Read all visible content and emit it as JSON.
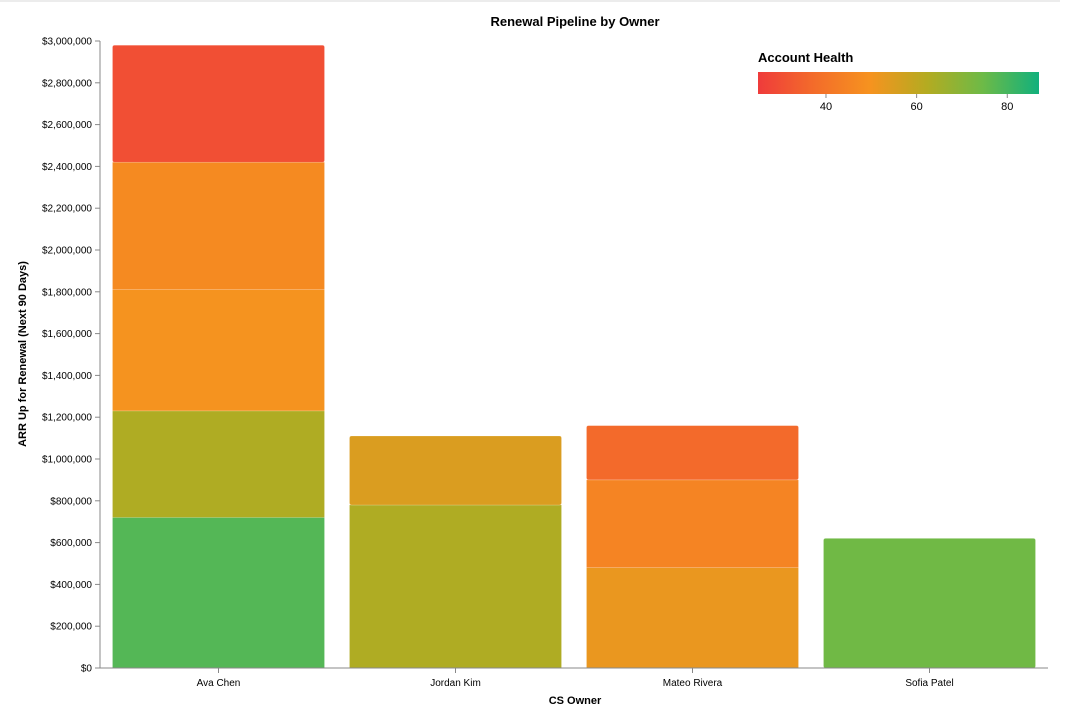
{
  "chart_data": {
    "type": "bar",
    "stacked": true,
    "title": "Renewal Pipeline by Owner",
    "xlabel": "CS Owner",
    "ylabel": "ARR Up for Renewal (Next 90 Days)",
    "ylim": [
      0,
      3000000
    ],
    "yticks": [
      "$0",
      "$200,000",
      "$400,000",
      "$600,000",
      "$800,000",
      "$1,000,000",
      "$1,200,000",
      "$1,400,000",
      "$1,600,000",
      "$1,800,000",
      "$2,000,000",
      "$2,200,000",
      "$2,400,000",
      "$2,600,000",
      "$2,800,000",
      "$3,000,000"
    ],
    "categories": [
      "Ava Chen",
      "Jordan Kim",
      "Mateo Rivera",
      "Sofia Patel"
    ],
    "segments": [
      [
        {
          "value": 720000,
          "health": 78
        },
        {
          "value": 510000,
          "health": 63
        },
        {
          "value": 580000,
          "health": 50
        },
        {
          "value": 610000,
          "health": 47
        },
        {
          "value": 560000,
          "health": 30
        }
      ],
      [
        {
          "value": 780000,
          "health": 63
        },
        {
          "value": 330000,
          "health": 55
        }
      ],
      [
        {
          "value": 480000,
          "health": 52
        },
        {
          "value": 420000,
          "health": 45
        },
        {
          "value": 260000,
          "health": 37
        }
      ],
      [
        {
          "value": 620000,
          "health": 74
        }
      ]
    ],
    "legend": {
      "title": "Account Health",
      "placement": "top-right",
      "labels": [
        "40",
        "60",
        "80"
      ],
      "domain": [
        25,
        87
      ],
      "colors": [
        "#ef3b3b",
        "#f36c2a",
        "#f6931f",
        "#b4ab21",
        "#6dba47",
        "#11b07c"
      ]
    },
    "grid": false
  }
}
